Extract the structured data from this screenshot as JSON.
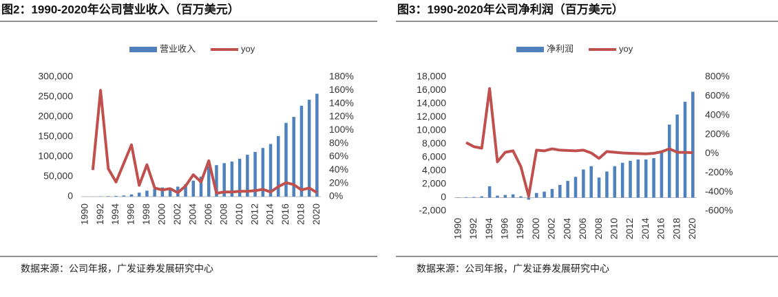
{
  "chart_data": [
    {
      "type": "combo",
      "title": "图2：1990-2020年公司营业收入（百万美元）",
      "source": "数据来源：公司年报，广发证券发展研究中心",
      "categories": [
        "1990",
        null,
        "1992",
        null,
        "1994",
        null,
        "1996",
        null,
        "1998",
        null,
        "2000",
        null,
        "2002",
        null,
        "2004",
        null,
        "2006",
        null,
        "2008",
        null,
        "2010",
        null,
        "2012",
        null,
        "2014",
        null,
        "2016",
        null,
        "2018",
        null,
        "2020"
      ],
      "series": [
        {
          "name": "营业收入",
          "type": "bar",
          "color": "#4f81bd",
          "values": [
            200,
            300,
            800,
            1200,
            1800,
            3000,
            5500,
            10000,
            15000,
            19000,
            23000,
            22000,
            25000,
            31000,
            40000,
            50000,
            76000,
            79000,
            84000,
            88000,
            95000,
            105000,
            112000,
            122000,
            132000,
            152000,
            185000,
            200000,
            228000,
            243000,
            258000
          ]
        },
        {
          "name": "yoy",
          "type": "line",
          "axis": "y2",
          "color": "#c0504d",
          "values": [
            null,
            40,
            160,
            42,
            22,
            50,
            78,
            17,
            48,
            13,
            10,
            12,
            6,
            16,
            33,
            22,
            54,
            5,
            7,
            7,
            8,
            8,
            9,
            11,
            7,
            15,
            21,
            18,
            10,
            13,
            6
          ]
        }
      ],
      "ylim": [
        0,
        300000
      ],
      "yticks": [
        0,
        {
          "value": 50000,
          "label": "50,000"
        },
        {
          "value": 100000,
          "label": "100,000"
        },
        {
          "value": 150000,
          "label": "150,000"
        },
        {
          "value": 200000,
          "label": "200,000"
        },
        {
          "value": 250000,
          "label": "250,000"
        },
        {
          "value": 300000,
          "label": "300,000"
        }
      ],
      "y2lim": [
        0,
        180
      ],
      "y2ticks": [
        {
          "value": 0,
          "label": "0%"
        },
        {
          "value": 20,
          "label": "20%"
        },
        {
          "value": 40,
          "label": "40%"
        },
        {
          "value": 60,
          "label": "60%"
        },
        {
          "value": 80,
          "label": "80%"
        },
        {
          "value": 100,
          "label": "100%"
        },
        {
          "value": 120,
          "label": "120%"
        },
        {
          "value": 140,
          "label": "140%"
        },
        {
          "value": 160,
          "label": "160%"
        },
        {
          "value": 180,
          "label": "180%"
        }
      ],
      "legend": "top"
    },
    {
      "type": "combo",
      "title": "图3：1990-2020年公司净利润（百万美元）",
      "source": "数据来源：公司年报，广发证券发展研究中心",
      "categories": [
        "1990",
        null,
        "1992",
        null,
        "1994",
        null,
        "1996",
        null,
        "1998",
        null,
        "2000",
        null,
        "2002",
        null,
        "2004",
        null,
        "2006",
        null,
        "2008",
        null,
        "2010",
        null,
        "2012",
        null,
        "2014",
        null,
        "2016",
        null,
        "2018",
        null,
        "2020"
      ],
      "series": [
        {
          "name": "净利润",
          "type": "bar",
          "color": "#4f81bd",
          "values": [
            50,
            80,
            100,
            200,
            1700,
            300,
            400,
            500,
            200,
            -300,
            700,
            900,
            1300,
            1900,
            2500,
            3100,
            4200,
            4700,
            3000,
            3900,
            4700,
            5200,
            5500,
            5700,
            5700,
            5900,
            6700,
            10900,
            12400,
            14300,
            15800
          ]
        },
        {
          "name": "yoy",
          "type": "line",
          "axis": "y2",
          "color": "#c0504d",
          "values": [
            null,
            115,
            72,
            57,
            680,
            -86,
            14,
            29,
            -136,
            -445,
            36,
            29,
            50,
            36,
            33,
            29,
            36,
            7,
            -50,
            22,
            14,
            7,
            3,
            0,
            -2,
            3,
            19,
            50,
            14,
            12,
            10
          ]
        }
      ],
      "ylim": [
        -2000,
        18000
      ],
      "yticks": [
        {
          "value": -2000,
          "label": "-2,000"
        },
        0,
        {
          "value": 2000,
          "label": "2,000"
        },
        {
          "value": 4000,
          "label": "4,000"
        },
        {
          "value": 6000,
          "label": "6,000"
        },
        {
          "value": 8000,
          "label": "8,000"
        },
        {
          "value": 10000,
          "label": "10,000"
        },
        {
          "value": 12000,
          "label": "12,000"
        },
        {
          "value": 14000,
          "label": "14,000"
        },
        {
          "value": 16000,
          "label": "16,000"
        },
        {
          "value": 18000,
          "label": "18,000"
        }
      ],
      "y2lim": [
        -600,
        800
      ],
      "y2ticks": [
        {
          "value": -600,
          "label": "-600%"
        },
        {
          "value": -400,
          "label": "-400%"
        },
        {
          "value": -200,
          "label": "-200%"
        },
        {
          "value": 0,
          "label": "0%"
        },
        {
          "value": 200,
          "label": "200%"
        },
        {
          "value": 400,
          "label": "400%"
        },
        {
          "value": 600,
          "label": "600%"
        },
        {
          "value": 800,
          "label": "800%"
        }
      ],
      "legend": "top"
    }
  ]
}
